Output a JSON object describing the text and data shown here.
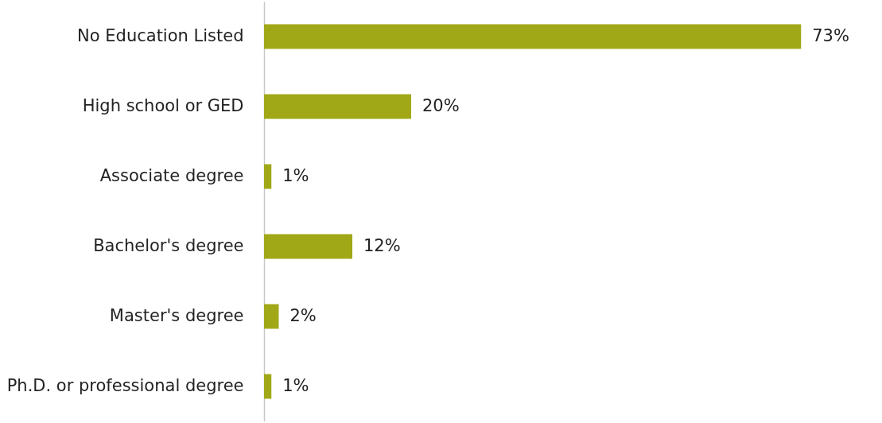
{
  "chart_data": {
    "type": "bar",
    "orientation": "horizontal",
    "categories": [
      "No Education Listed",
      "High school or GED",
      "Associate degree",
      "Bachelor's degree",
      "Master's degree",
      "Ph.D. or professional degree"
    ],
    "values": [
      73,
      20,
      1,
      12,
      2,
      1
    ],
    "value_labels": [
      "73%",
      "20%",
      "1%",
      "12%",
      "2%",
      "1%"
    ],
    "color": "#a0a817"
  }
}
